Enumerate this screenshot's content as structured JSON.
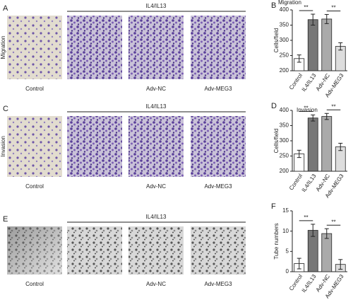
{
  "figure": {
    "rows": [
      {
        "letter": "A",
        "side_label": "Migration",
        "group_label": "IL4/IL13",
        "image_labels": [
          "Control",
          "Adv-NC",
          "Adv-MEG3"
        ]
      },
      {
        "letter": "C",
        "side_label": "Invasion",
        "group_label": "IL4/IL13",
        "image_labels": [
          "Control",
          "Adv-NC",
          "Adv-MEG3"
        ]
      },
      {
        "letter": "E",
        "group_label": "IL4/IL13",
        "image_labels": [
          "Control",
          "Adv-NC",
          "Adv-MEG3"
        ]
      }
    ]
  },
  "chart_data": [
    {
      "type": "bar",
      "letter": "B",
      "title": "Migration",
      "ylabel": "Cells/field",
      "categories": [
        "Control",
        "IL4/IL13",
        "Adv-NC",
        "Adv-MEG3"
      ],
      "values": [
        240,
        368,
        370,
        280
      ],
      "errors": [
        12,
        18,
        15,
        12
      ],
      "colors": [
        "#ffffff",
        "#777777",
        "#aaaaaa",
        "#dddddd"
      ],
      "ylim": [
        200,
        400
      ],
      "yticks": [
        200,
        250,
        300,
        350,
        400
      ],
      "annotations": [
        "**",
        "**"
      ]
    },
    {
      "type": "bar",
      "letter": "D",
      "title": "Invasion",
      "ylabel": "Cells/field",
      "categories": [
        "Control",
        "IL4/IL13",
        "Adv-NC",
        "Adv-MEG3"
      ],
      "values": [
        257,
        375,
        380,
        280
      ],
      "errors": [
        12,
        10,
        10,
        12
      ],
      "colors": [
        "#ffffff",
        "#777777",
        "#aaaaaa",
        "#dddddd"
      ],
      "ylim": [
        200,
        400
      ],
      "yticks": [
        200,
        250,
        300,
        350,
        400
      ],
      "annotations": [
        "**",
        "**"
      ]
    },
    {
      "type": "bar",
      "letter": "F",
      "ylabel": "Tube numbers",
      "categories": [
        "Control",
        "IL4/IL13",
        "Adv-NC",
        "Adv-MEG3"
      ],
      "values": [
        2,
        10.2,
        9.4,
        1.8
      ],
      "errors": [
        1.3,
        1.5,
        1.2,
        1.2
      ],
      "colors": [
        "#ffffff",
        "#777777",
        "#aaaaaa",
        "#dddddd"
      ],
      "ylim": [
        0,
        15
      ],
      "yticks": [
        0,
        5,
        10,
        15
      ],
      "annotations": [
        "**",
        "**"
      ]
    }
  ]
}
